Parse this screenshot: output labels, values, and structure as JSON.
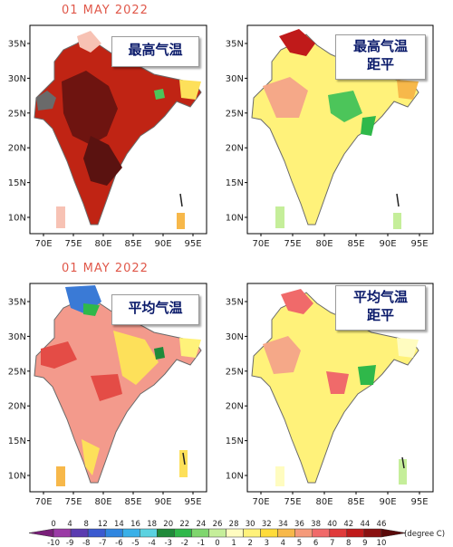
{
  "titles": {
    "top": "01 MAY 2022",
    "bottom": "01 MAY 2022"
  },
  "panels": [
    {
      "label_lines": [
        "最高气温"
      ],
      "kind": "tmax"
    },
    {
      "label_lines": [
        "最高气温",
        "距平"
      ],
      "kind": "tmax-anom"
    },
    {
      "label_lines": [
        "平均气温"
      ],
      "kind": "tmean"
    },
    {
      "label_lines": [
        "平均气温",
        "距平"
      ],
      "kind": "tmean-anom"
    }
  ],
  "axes": {
    "lat_labels": [
      "35N",
      "30N",
      "25N",
      "20N",
      "15N",
      "10N"
    ],
    "lon_labels": [
      "70E",
      "75E",
      "80E",
      "85E",
      "90E",
      "95E"
    ]
  },
  "colorbar": {
    "top_labels": [
      "0",
      "4",
      "8",
      "12",
      "14",
      "16",
      "18",
      "20",
      "22",
      "24",
      "26",
      "28",
      "30",
      "32",
      "34",
      "36",
      "38",
      "40",
      "42",
      "44",
      "46"
    ],
    "bottom_labels": [
      "-10",
      "-9",
      "-8",
      "-7",
      "-6",
      "-5",
      "-4",
      "-3",
      "-2",
      "-1",
      "0",
      "1",
      "2",
      "3",
      "4",
      "5",
      "6",
      "7",
      "8",
      "9",
      "10"
    ],
    "unit": "(degree C)",
    "colors": [
      "#7a1f7a",
      "#9b3aa6",
      "#5a3bb0",
      "#3a5ad0",
      "#2f86e0",
      "#39b0e8",
      "#5bd2e0",
      "#1f8a3a",
      "#2fb84a",
      "#7fd66e",
      "#c5ee9a",
      "#fffcc0",
      "#fff27a",
      "#ffdc3a",
      "#f7b84a",
      "#f59a7a",
      "#f06a6a",
      "#e03a3a",
      "#c01a1a",
      "#8a1010",
      "#5a0a0a"
    ]
  },
  "fill_colors": {
    "tmax": "#c02414",
    "tmax_hot": "#6e1410",
    "tmax_cool": "#f7c2b4",
    "anom_base": "#fff27a",
    "anom_warm": "#f5a888",
    "anom_green": "#4cc55a",
    "tmean_base": "#f39a8c",
    "tmean_hot": "#e44c46",
    "tmean_cool": "#fde05a",
    "tmean_blue": "#3a7ad6",
    "sea": "#ffffff",
    "outline": "#6a6a6a"
  }
}
